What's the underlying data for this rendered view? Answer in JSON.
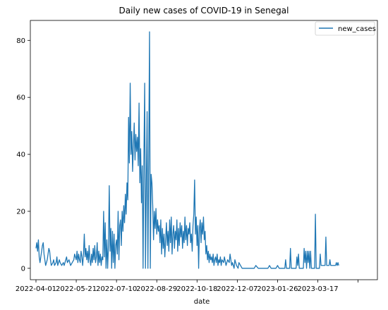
{
  "chart_data": {
    "type": "line",
    "title": "Daily new cases of COVID-19 in Senegal",
    "xlabel": "date",
    "ylabel": "",
    "x_tick_labels": [
      "2022-04-01",
      "2022-05-21",
      "2022-07-10",
      "2022-08-29",
      "2022-10-18",
      "2022-12-07",
      "2023-01-26",
      "2023-03-17"
    ],
    "y_ticks": [
      0,
      20,
      40,
      60,
      80
    ],
    "xlim": [
      "2022-03-25",
      "2023-05-30"
    ],
    "ylim": [
      -4,
      87
    ],
    "legend": {
      "position": "top-right"
    },
    "grid": false,
    "color": "#1f77b4",
    "series": [
      {
        "name": "new_cases",
        "points": [
          [
            "2022-04-01",
            7
          ],
          [
            "2022-04-02",
            9
          ],
          [
            "2022-04-03",
            6
          ],
          [
            "2022-04-04",
            10
          ],
          [
            "2022-04-05",
            4
          ],
          [
            "2022-04-06",
            2
          ],
          [
            "2022-04-08",
            6
          ],
          [
            "2022-04-09",
            8
          ],
          [
            "2022-04-10",
            9
          ],
          [
            "2022-04-11",
            5
          ],
          [
            "2022-04-12",
            3
          ],
          [
            "2022-04-13",
            1
          ],
          [
            "2022-04-15",
            3
          ],
          [
            "2022-04-16",
            5
          ],
          [
            "2022-04-17",
            7
          ],
          [
            "2022-04-18",
            6
          ],
          [
            "2022-04-19",
            3
          ],
          [
            "2022-04-20",
            1
          ],
          [
            "2022-04-22",
            2
          ],
          [
            "2022-04-23",
            3
          ],
          [
            "2022-04-24",
            1
          ],
          [
            "2022-04-26",
            2
          ],
          [
            "2022-04-27",
            4
          ],
          [
            "2022-04-28",
            1
          ],
          [
            "2022-04-30",
            3
          ],
          [
            "2022-05-01",
            2
          ],
          [
            "2022-05-03",
            1
          ],
          [
            "2022-05-05",
            2
          ],
          [
            "2022-05-06",
            1
          ],
          [
            "2022-05-08",
            3
          ],
          [
            "2022-05-09",
            4
          ],
          [
            "2022-05-10",
            2
          ],
          [
            "2022-05-12",
            3
          ],
          [
            "2022-05-13",
            2
          ],
          [
            "2022-05-14",
            1
          ],
          [
            "2022-05-16",
            2
          ],
          [
            "2022-05-18",
            3
          ],
          [
            "2022-05-19",
            5
          ],
          [
            "2022-05-20",
            4
          ],
          [
            "2022-05-21",
            3
          ],
          [
            "2022-05-22",
            6
          ],
          [
            "2022-05-23",
            2
          ],
          [
            "2022-05-24",
            5
          ],
          [
            "2022-05-25",
            3
          ],
          [
            "2022-05-26",
            2
          ],
          [
            "2022-05-27",
            6
          ],
          [
            "2022-05-28",
            4
          ],
          [
            "2022-05-29",
            1
          ],
          [
            "2022-05-30",
            5
          ],
          [
            "2022-05-31",
            12
          ],
          [
            "2022-06-01",
            4
          ],
          [
            "2022-06-02",
            7
          ],
          [
            "2022-06-03",
            3
          ],
          [
            "2022-06-04",
            6
          ],
          [
            "2022-06-05",
            2
          ],
          [
            "2022-06-06",
            8
          ],
          [
            "2022-06-07",
            3
          ],
          [
            "2022-06-08",
            1
          ],
          [
            "2022-06-09",
            5
          ],
          [
            "2022-06-10",
            2
          ],
          [
            "2022-06-11",
            7
          ],
          [
            "2022-06-12",
            3
          ],
          [
            "2022-06-13",
            8
          ],
          [
            "2022-06-14",
            2
          ],
          [
            "2022-06-15",
            4
          ],
          [
            "2022-06-16",
            9
          ],
          [
            "2022-06-17",
            1
          ],
          [
            "2022-06-18",
            6
          ],
          [
            "2022-06-19",
            2
          ],
          [
            "2022-06-20",
            5
          ],
          [
            "2022-06-21",
            1
          ],
          [
            "2022-06-22",
            4
          ],
          [
            "2022-06-23",
            3
          ],
          [
            "2022-06-24",
            20
          ],
          [
            "2022-06-25",
            4
          ],
          [
            "2022-06-26",
            16
          ],
          [
            "2022-06-27",
            0
          ],
          [
            "2022-06-28",
            10
          ],
          [
            "2022-06-29",
            0
          ],
          [
            "2022-06-30",
            8
          ],
          [
            "2022-07-01",
            29
          ],
          [
            "2022-07-02",
            6
          ],
          [
            "2022-07-03",
            14
          ],
          [
            "2022-07-04",
            0
          ],
          [
            "2022-07-05",
            13
          ],
          [
            "2022-07-06",
            2
          ],
          [
            "2022-07-07",
            12
          ],
          [
            "2022-07-08",
            0
          ],
          [
            "2022-07-09",
            8
          ],
          [
            "2022-07-10",
            10
          ],
          [
            "2022-07-11",
            5
          ],
          [
            "2022-07-12",
            20
          ],
          [
            "2022-07-13",
            3
          ],
          [
            "2022-07-14",
            15
          ],
          [
            "2022-07-15",
            17
          ],
          [
            "2022-07-16",
            8
          ],
          [
            "2022-07-17",
            20
          ],
          [
            "2022-07-18",
            13
          ],
          [
            "2022-07-19",
            22
          ],
          [
            "2022-07-20",
            16
          ],
          [
            "2022-07-21",
            26
          ],
          [
            "2022-07-22",
            19
          ],
          [
            "2022-07-23",
            30
          ],
          [
            "2022-07-24",
            24
          ],
          [
            "2022-07-25",
            53
          ],
          [
            "2022-07-26",
            37
          ],
          [
            "2022-07-27",
            65
          ],
          [
            "2022-07-28",
            40
          ],
          [
            "2022-07-29",
            48
          ],
          [
            "2022-07-30",
            34
          ],
          [
            "2022-07-31",
            43
          ],
          [
            "2022-08-01",
            51
          ],
          [
            "2022-08-02",
            38
          ],
          [
            "2022-08-03",
            47
          ],
          [
            "2022-08-04",
            41
          ],
          [
            "2022-08-05",
            46
          ],
          [
            "2022-08-06",
            36
          ],
          [
            "2022-08-07",
            58
          ],
          [
            "2022-08-08",
            30
          ],
          [
            "2022-08-09",
            42
          ],
          [
            "2022-08-10",
            23
          ],
          [
            "2022-08-11",
            36
          ],
          [
            "2022-08-12",
            0
          ],
          [
            "2022-08-13",
            38
          ],
          [
            "2022-08-14",
            65
          ],
          [
            "2022-08-15",
            0
          ],
          [
            "2022-08-16",
            28
          ],
          [
            "2022-08-17",
            55
          ],
          [
            "2022-08-18",
            0
          ],
          [
            "2022-08-19",
            38
          ],
          [
            "2022-08-20",
            83
          ],
          [
            "2022-08-21",
            0
          ],
          [
            "2022-08-22",
            33
          ],
          [
            "2022-08-23",
            30
          ],
          [
            "2022-08-24",
            22
          ],
          [
            "2022-08-25",
            10
          ],
          [
            "2022-08-26",
            20
          ],
          [
            "2022-08-27",
            14
          ],
          [
            "2022-08-28",
            21
          ],
          [
            "2022-08-29",
            12
          ],
          [
            "2022-08-30",
            17
          ],
          [
            "2022-08-31",
            13
          ],
          [
            "2022-09-01",
            15
          ],
          [
            "2022-09-02",
            9
          ],
          [
            "2022-09-03",
            17
          ],
          [
            "2022-09-04",
            5
          ],
          [
            "2022-09-05",
            14
          ],
          [
            "2022-09-06",
            7
          ],
          [
            "2022-09-07",
            12
          ],
          [
            "2022-09-08",
            4
          ],
          [
            "2022-09-09",
            10
          ],
          [
            "2022-09-10",
            16
          ],
          [
            "2022-09-11",
            8
          ],
          [
            "2022-09-12",
            13
          ],
          [
            "2022-09-13",
            6
          ],
          [
            "2022-09-14",
            17
          ],
          [
            "2022-09-15",
            9
          ],
          [
            "2022-09-16",
            18
          ],
          [
            "2022-09-17",
            5
          ],
          [
            "2022-09-18",
            12
          ],
          [
            "2022-09-19",
            15
          ],
          [
            "2022-09-20",
            7
          ],
          [
            "2022-09-21",
            13
          ],
          [
            "2022-09-22",
            10
          ],
          [
            "2022-09-23",
            17
          ],
          [
            "2022-09-24",
            6
          ],
          [
            "2022-09-25",
            14
          ],
          [
            "2022-09-26",
            8
          ],
          [
            "2022-09-27",
            16
          ],
          [
            "2022-09-28",
            11
          ],
          [
            "2022-09-29",
            15
          ],
          [
            "2022-09-30",
            7
          ],
          [
            "2022-10-01",
            13
          ],
          [
            "2022-10-02",
            9
          ],
          [
            "2022-10-03",
            18
          ],
          [
            "2022-10-04",
            10
          ],
          [
            "2022-10-05",
            15
          ],
          [
            "2022-10-06",
            8
          ],
          [
            "2022-10-07",
            14
          ],
          [
            "2022-10-08",
            12
          ],
          [
            "2022-10-09",
            16
          ],
          [
            "2022-10-10",
            9
          ],
          [
            "2022-10-11",
            12
          ],
          [
            "2022-10-12",
            6
          ],
          [
            "2022-10-13",
            15
          ],
          [
            "2022-10-14",
            19
          ],
          [
            "2022-10-15",
            31
          ],
          [
            "2022-10-16",
            12
          ],
          [
            "2022-10-17",
            18
          ],
          [
            "2022-10-18",
            8
          ],
          [
            "2022-10-19",
            15
          ],
          [
            "2022-10-20",
            0
          ],
          [
            "2022-10-21",
            14
          ],
          [
            "2022-10-22",
            17
          ],
          [
            "2022-10-23",
            9
          ],
          [
            "2022-10-24",
            16
          ],
          [
            "2022-10-25",
            12
          ],
          [
            "2022-10-26",
            18
          ],
          [
            "2022-10-27",
            10
          ],
          [
            "2022-10-28",
            13
          ],
          [
            "2022-10-29",
            5
          ],
          [
            "2022-10-30",
            8
          ],
          [
            "2022-10-31",
            3
          ],
          [
            "2022-11-01",
            6
          ],
          [
            "2022-11-02",
            2
          ],
          [
            "2022-11-03",
            5
          ],
          [
            "2022-11-04",
            3
          ],
          [
            "2022-11-05",
            4
          ],
          [
            "2022-11-06",
            2
          ],
          [
            "2022-11-07",
            5
          ],
          [
            "2022-11-08",
            1
          ],
          [
            "2022-11-09",
            3
          ],
          [
            "2022-11-10",
            4
          ],
          [
            "2022-11-11",
            2
          ],
          [
            "2022-11-12",
            5
          ],
          [
            "2022-11-13",
            1
          ],
          [
            "2022-11-14",
            3
          ],
          [
            "2022-11-15",
            2
          ],
          [
            "2022-11-16",
            4
          ],
          [
            "2022-11-17",
            1
          ],
          [
            "2022-11-18",
            3
          ],
          [
            "2022-11-20",
            2
          ],
          [
            "2022-11-21",
            4
          ],
          [
            "2022-11-23",
            1
          ],
          [
            "2022-11-25",
            3
          ],
          [
            "2022-11-27",
            2
          ],
          [
            "2022-11-28",
            5
          ],
          [
            "2022-11-30",
            1
          ],
          [
            "2022-12-01",
            2
          ],
          [
            "2022-12-03",
            0
          ],
          [
            "2022-12-04",
            3
          ],
          [
            "2022-12-06",
            1
          ],
          [
            "2022-12-08",
            0
          ],
          [
            "2022-12-09",
            2
          ],
          [
            "2022-12-11",
            1
          ],
          [
            "2022-12-13",
            0
          ],
          [
            "2022-12-28",
            0
          ],
          [
            "2022-12-30",
            1
          ],
          [
            "2023-01-02",
            0
          ],
          [
            "2023-01-14",
            0
          ],
          [
            "2023-01-16",
            1
          ],
          [
            "2023-01-18",
            0
          ],
          [
            "2023-01-24",
            0
          ],
          [
            "2023-01-26",
            1
          ],
          [
            "2023-01-28",
            0
          ],
          [
            "2023-02-04",
            0
          ],
          [
            "2023-02-05",
            3
          ],
          [
            "2023-02-06",
            0
          ],
          [
            "2023-02-10",
            0
          ],
          [
            "2023-02-11",
            7
          ],
          [
            "2023-02-12",
            0
          ],
          [
            "2023-02-18",
            0
          ],
          [
            "2023-02-19",
            4
          ],
          [
            "2023-02-20",
            1
          ],
          [
            "2023-02-21",
            5
          ],
          [
            "2023-02-22",
            0
          ],
          [
            "2023-02-27",
            0
          ],
          [
            "2023-02-28",
            7
          ],
          [
            "2023-03-01",
            2
          ],
          [
            "2023-03-02",
            6
          ],
          [
            "2023-03-03",
            0
          ],
          [
            "2023-03-04",
            6
          ],
          [
            "2023-03-05",
            2
          ],
          [
            "2023-03-06",
            6
          ],
          [
            "2023-03-07",
            0
          ],
          [
            "2023-03-08",
            6
          ],
          [
            "2023-03-09",
            0
          ],
          [
            "2023-03-13",
            0
          ],
          [
            "2023-03-14",
            19
          ],
          [
            "2023-03-15",
            0
          ],
          [
            "2023-03-19",
            0
          ],
          [
            "2023-03-20",
            5
          ],
          [
            "2023-03-21",
            1
          ],
          [
            "2023-03-26",
            1
          ],
          [
            "2023-03-27",
            11
          ],
          [
            "2023-03-28",
            1
          ],
          [
            "2023-03-31",
            1
          ],
          [
            "2023-04-01",
            3
          ],
          [
            "2023-04-02",
            1
          ],
          [
            "2023-04-08",
            1
          ],
          [
            "2023-04-09",
            2
          ],
          [
            "2023-04-10",
            1
          ],
          [
            "2023-04-11",
            2
          ],
          [
            "2023-04-12",
            1
          ]
        ]
      }
    ]
  }
}
